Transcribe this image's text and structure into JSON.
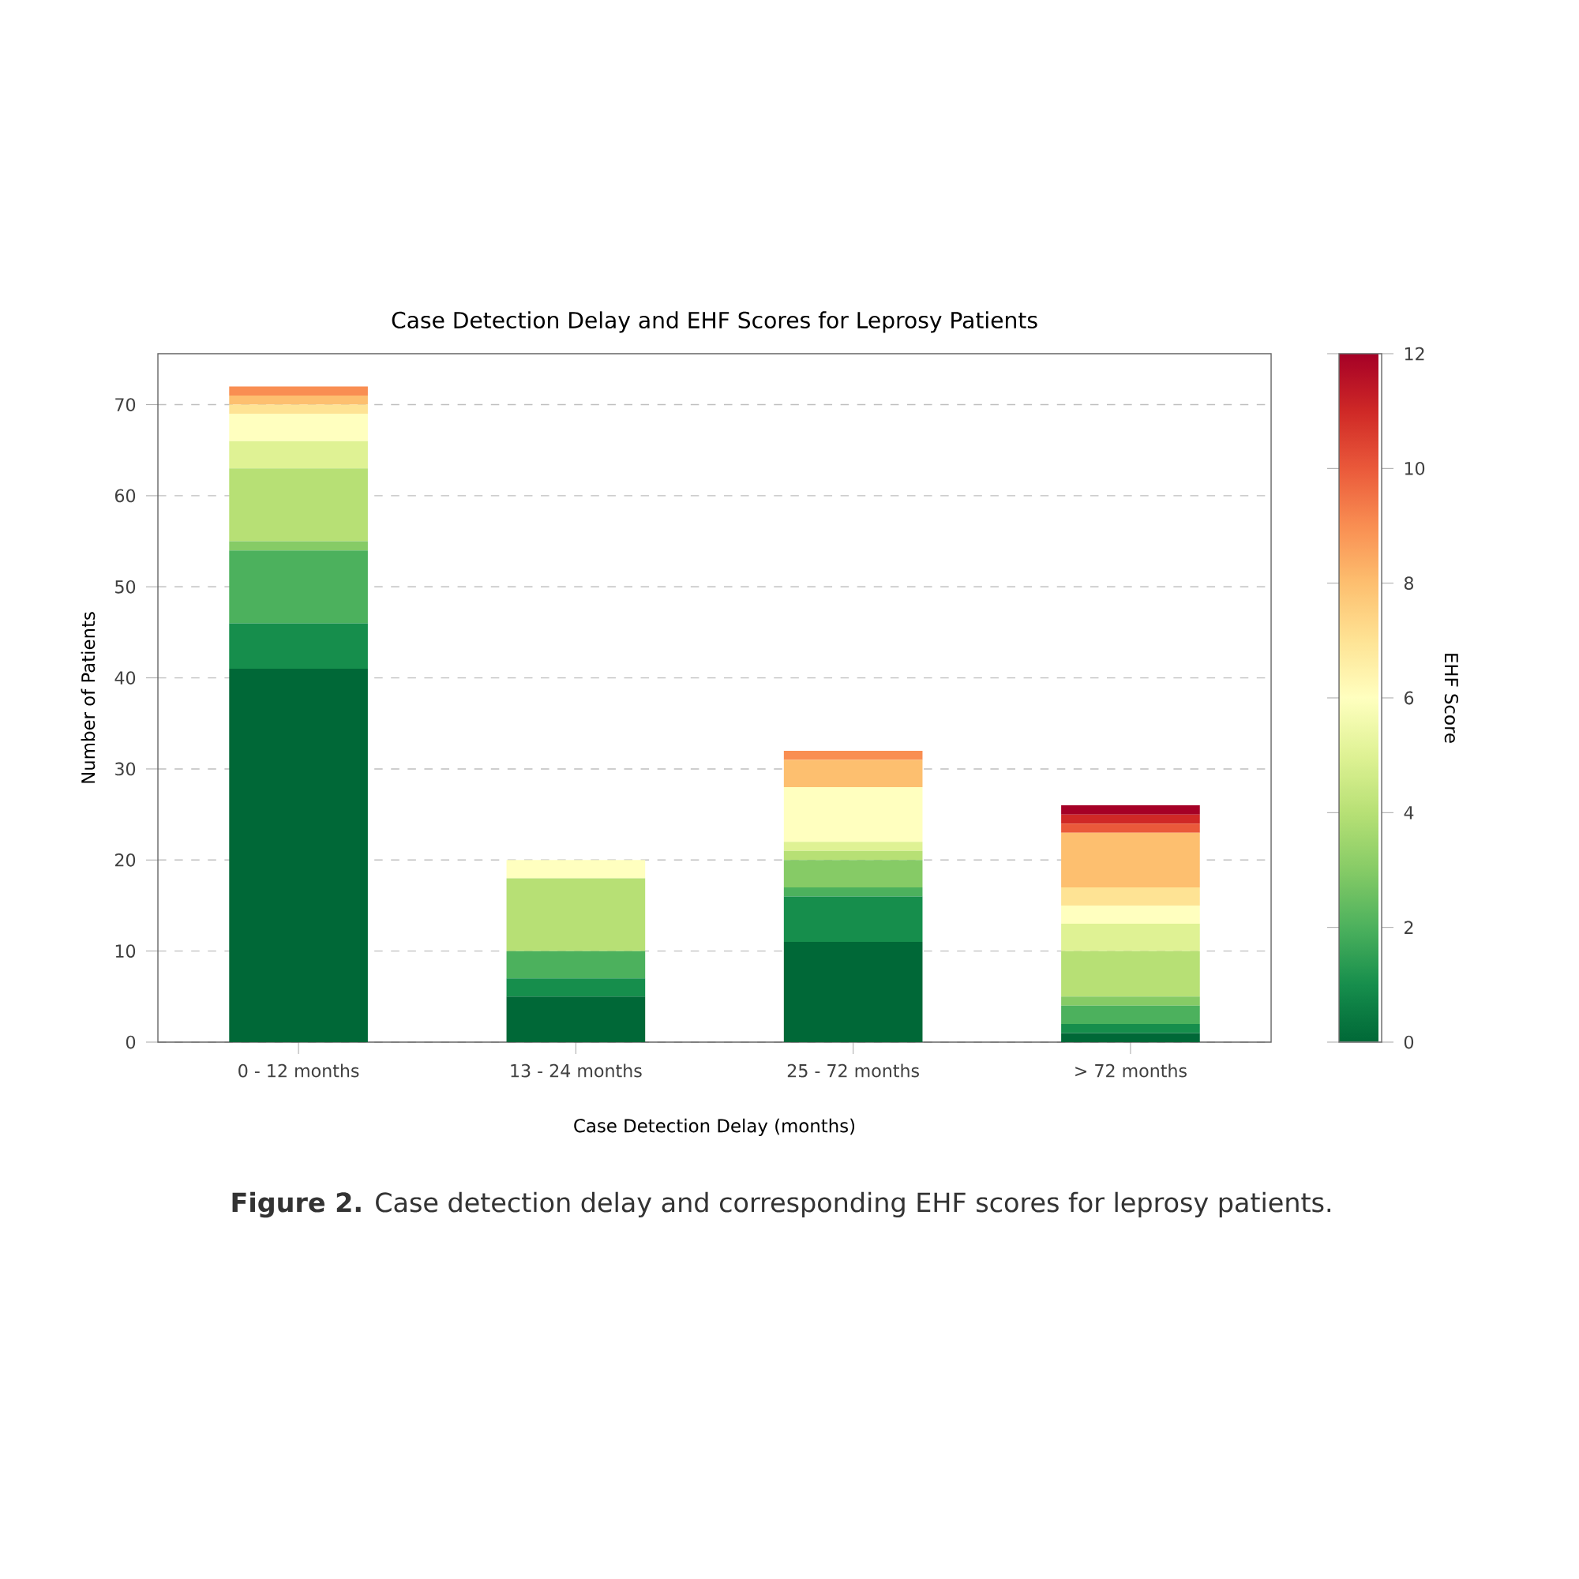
{
  "chart_data": {
    "type": "bar",
    "stacked": true,
    "title": "Case Detection Delay and EHF Scores for Leprosy Patients",
    "xlabel": "Case Detection Delay (months)",
    "ylabel": "Number of Patients",
    "clabel": "EHF Score",
    "categories": [
      "0 - 12 months",
      "13 - 24 months",
      "25 - 72 months",
      "> 72 months"
    ],
    "series": [
      {
        "color": "#006837",
        "values": [
          41,
          5,
          11,
          1
        ]
      },
      {
        "color": "#168e4c",
        "values": [
          5,
          2,
          5,
          1
        ]
      },
      {
        "color": "#4cb15d",
        "values": [
          8,
          3,
          1,
          2
        ]
      },
      {
        "color": "#86cb66",
        "values": [
          1,
          0,
          3,
          1
        ]
      },
      {
        "color": "#b7e075",
        "values": [
          8,
          8,
          1,
          5
        ]
      },
      {
        "color": "#dff294",
        "values": [
          3,
          0,
          1,
          3
        ]
      },
      {
        "color": "#ffffbf",
        "values": [
          3,
          2,
          6,
          2
        ]
      },
      {
        "color": "#fee394",
        "values": [
          1,
          0,
          0,
          2
        ]
      },
      {
        "color": "#fdbf6f",
        "values": [
          1,
          0,
          3,
          6
        ]
      },
      {
        "color": "#f98e52",
        "values": [
          1,
          0,
          1,
          0
        ]
      },
      {
        "color": "#ea593a",
        "values": [
          0,
          0,
          0,
          1
        ]
      },
      {
        "color": "#cf2826",
        "values": [
          0,
          0,
          0,
          1
        ]
      },
      {
        "color": "#a50026",
        "values": [
          0,
          0,
          0,
          1
        ]
      }
    ],
    "ylim": [
      0,
      75.6
    ],
    "yticks": [
      0,
      10,
      20,
      30,
      40,
      50,
      60,
      70
    ],
    "grid": "y",
    "clim": [
      0,
      12
    ],
    "cticks": [
      0,
      2,
      4,
      6,
      8,
      10,
      12
    ],
    "annotations": [
      "**Figure 2.** Case detection delay and corresponding EHF scores for leprosy patients."
    ]
  }
}
